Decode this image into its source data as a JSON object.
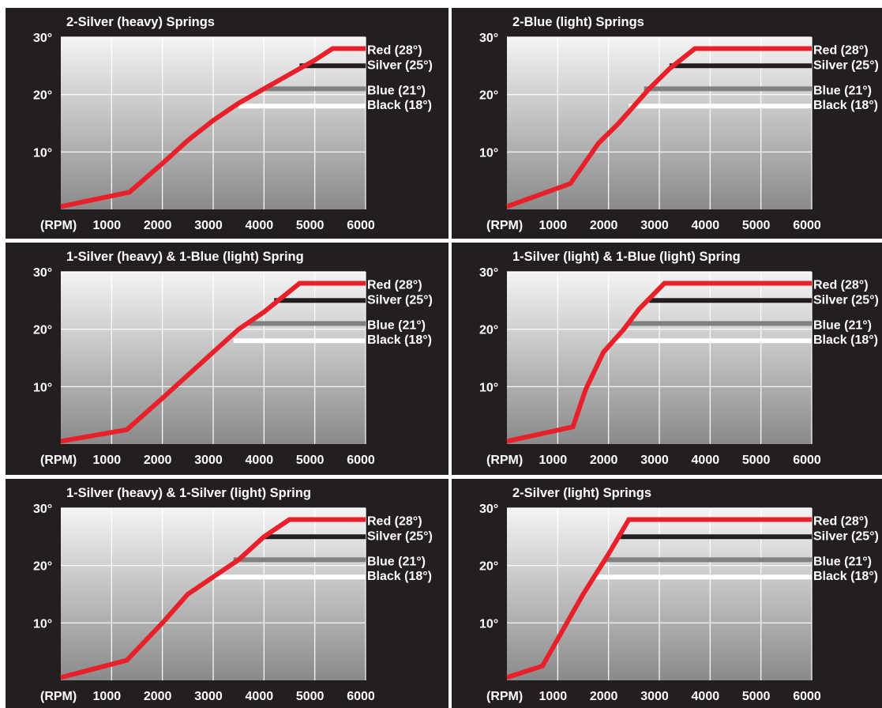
{
  "chart_data": [
    {
      "type": "line",
      "title": "2-Silver (heavy) Springs",
      "xlabel": "(RPM)",
      "x_ticks": [
        "1000",
        "2000",
        "3000",
        "4000",
        "5000",
        "6000"
      ],
      "y_ticks": [
        "10°",
        "20°",
        "30°"
      ],
      "xlim": [
        0,
        6000
      ],
      "ylim": [
        0,
        30
      ],
      "series": [
        {
          "name": "Red (28°)",
          "color": "#e8202a",
          "points": [
            [
              0,
              0.5
            ],
            [
              1350,
              3
            ],
            [
              2000,
              8
            ],
            [
              2500,
              12
            ],
            [
              3000,
              15.5
            ],
            [
              3500,
              18.5
            ],
            [
              4000,
              21
            ],
            [
              4500,
              23.5
            ],
            [
              5000,
              26
            ],
            [
              5350,
              28
            ],
            [
              6000,
              28
            ]
          ]
        },
        {
          "name": "Silver (25°)",
          "color": "#231f20",
          "points": [
            [
              4700,
              25
            ],
            [
              6000,
              25
            ]
          ]
        },
        {
          "name": "Blue (21°)",
          "color": "#808080",
          "points": [
            [
              4000,
              21
            ],
            [
              6000,
              21
            ]
          ]
        },
        {
          "name": "Black (18°)",
          "color": "#ffffff",
          "points": [
            [
              3500,
              18
            ],
            [
              6000,
              18
            ]
          ]
        }
      ]
    },
    {
      "type": "line",
      "title": "2-Blue (light) Springs",
      "xlabel": "(RPM)",
      "x_ticks": [
        "1000",
        "2000",
        "3000",
        "4000",
        "5000",
        "6000"
      ],
      "y_ticks": [
        "10°",
        "20°",
        "30°"
      ],
      "xlim": [
        0,
        6000
      ],
      "ylim": [
        0,
        30
      ],
      "series": [
        {
          "name": "Red (28°)",
          "color": "#e8202a",
          "points": [
            [
              0,
              0.5
            ],
            [
              1250,
              4.5
            ],
            [
              1800,
              11.5
            ],
            [
              2200,
              15
            ],
            [
              2800,
              21
            ],
            [
              3200,
              24.5
            ],
            [
              3700,
              28
            ],
            [
              6000,
              28
            ]
          ]
        },
        {
          "name": "Silver (25°)",
          "color": "#231f20",
          "points": [
            [
              3200,
              25
            ],
            [
              6000,
              25
            ]
          ]
        },
        {
          "name": "Blue (21°)",
          "color": "#808080",
          "points": [
            [
              2700,
              21
            ],
            [
              6000,
              21
            ]
          ]
        },
        {
          "name": "Black (18°)",
          "color": "#ffffff",
          "points": [
            [
              2400,
              18
            ],
            [
              6000,
              18
            ]
          ]
        }
      ]
    },
    {
      "type": "line",
      "title": "1-Silver (heavy) & 1-Blue (light) Spring",
      "xlabel": "(RPM)",
      "x_ticks": [
        "1000",
        "2000",
        "3000",
        "4000",
        "5000",
        "6000"
      ],
      "y_ticks": [
        "10°",
        "20°",
        "30°"
      ],
      "xlim": [
        0,
        6000
      ],
      "ylim": [
        0,
        30
      ],
      "series": [
        {
          "name": "Red (28°)",
          "color": "#e8202a",
          "points": [
            [
              0,
              0.5
            ],
            [
              1300,
              2.5
            ],
            [
              2000,
              8
            ],
            [
              2500,
              12
            ],
            [
              3000,
              16
            ],
            [
              3500,
              20
            ],
            [
              4000,
              23
            ],
            [
              4700,
              28
            ],
            [
              6000,
              28
            ]
          ]
        },
        {
          "name": "Silver (25°)",
          "color": "#231f20",
          "points": [
            [
              4200,
              25
            ],
            [
              6000,
              25
            ]
          ]
        },
        {
          "name": "Blue (21°)",
          "color": "#808080",
          "points": [
            [
              3700,
              21
            ],
            [
              6000,
              21
            ]
          ]
        },
        {
          "name": "Black (18°)",
          "color": "#ffffff",
          "points": [
            [
              3400,
              18
            ],
            [
              6000,
              18
            ]
          ]
        }
      ]
    },
    {
      "type": "line",
      "title": "1-Silver (light) & 1-Blue (light) Spring",
      "xlabel": "(RPM)",
      "x_ticks": [
        "1000",
        "2000",
        "3000",
        "4000",
        "5000",
        "6000"
      ],
      "y_ticks": [
        "10°",
        "20°",
        "30°"
      ],
      "xlim": [
        0,
        6000
      ],
      "ylim": [
        0,
        30
      ],
      "series": [
        {
          "name": "Red (28°)",
          "color": "#e8202a",
          "points": [
            [
              0,
              0.5
            ],
            [
              1300,
              3
            ],
            [
              1550,
              9.5
            ],
            [
              1900,
              16
            ],
            [
              2300,
              20
            ],
            [
              2600,
              23.5
            ],
            [
              3100,
              28
            ],
            [
              6000,
              28
            ]
          ]
        },
        {
          "name": "Silver (25°)",
          "color": "#231f20",
          "points": [
            [
              2800,
              25
            ],
            [
              6000,
              25
            ]
          ]
        },
        {
          "name": "Blue (21°)",
          "color": "#808080",
          "points": [
            [
              2400,
              21
            ],
            [
              6000,
              21
            ]
          ]
        },
        {
          "name": "Black (18°)",
          "color": "#ffffff",
          "points": [
            [
              2100,
              18
            ],
            [
              6000,
              18
            ]
          ]
        }
      ]
    },
    {
      "type": "line",
      "title": "1-Silver (heavy) & 1-Silver (light) Spring",
      "xlabel": "(RPM)",
      "x_ticks": [
        "1000",
        "2000",
        "3000",
        "4000",
        "5000",
        "6000"
      ],
      "y_ticks": [
        "10°",
        "20°",
        "30°"
      ],
      "xlim": [
        0,
        6000
      ],
      "ylim": [
        0,
        30
      ],
      "series": [
        {
          "name": "Red (28°)",
          "color": "#e8202a",
          "points": [
            [
              0,
              0.5
            ],
            [
              1300,
              3.5
            ],
            [
              2000,
              10
            ],
            [
              2500,
              15
            ],
            [
              3000,
              18
            ],
            [
              3500,
              21
            ],
            [
              4000,
              25
            ],
            [
              4500,
              28
            ],
            [
              6000,
              28
            ]
          ]
        },
        {
          "name": "Silver (25°)",
          "color": "#231f20",
          "points": [
            [
              4000,
              25
            ],
            [
              6000,
              25
            ]
          ]
        },
        {
          "name": "Blue (21°)",
          "color": "#808080",
          "points": [
            [
              3400,
              21
            ],
            [
              6000,
              21
            ]
          ]
        },
        {
          "name": "Black (18°)",
          "color": "#ffffff",
          "points": [
            [
              3000,
              18
            ],
            [
              6000,
              18
            ]
          ]
        }
      ]
    },
    {
      "type": "line",
      "title": "2-Silver (light) Springs",
      "xlabel": "(RPM)",
      "x_ticks": [
        "1000",
        "2000",
        "3000",
        "4000",
        "5000",
        "6000"
      ],
      "y_ticks": [
        "10°",
        "20°",
        "30°"
      ],
      "xlim": [
        0,
        6000
      ],
      "ylim": [
        0,
        30
      ],
      "series": [
        {
          "name": "Red (28°)",
          "color": "#e8202a",
          "points": [
            [
              0,
              0.5
            ],
            [
              700,
              2.5
            ],
            [
              1500,
              15
            ],
            [
              2000,
              22
            ],
            [
              2400,
              28
            ],
            [
              6000,
              28
            ]
          ]
        },
        {
          "name": "Silver (25°)",
          "color": "#231f20",
          "points": [
            [
              2200,
              25
            ],
            [
              6000,
              25
            ]
          ]
        },
        {
          "name": "Blue (21°)",
          "color": "#808080",
          "points": [
            [
              1900,
              21
            ],
            [
              6000,
              21
            ]
          ]
        },
        {
          "name": "Black (18°)",
          "color": "#ffffff",
          "points": [
            [
              1700,
              18
            ],
            [
              6000,
              18
            ]
          ]
        }
      ]
    }
  ]
}
